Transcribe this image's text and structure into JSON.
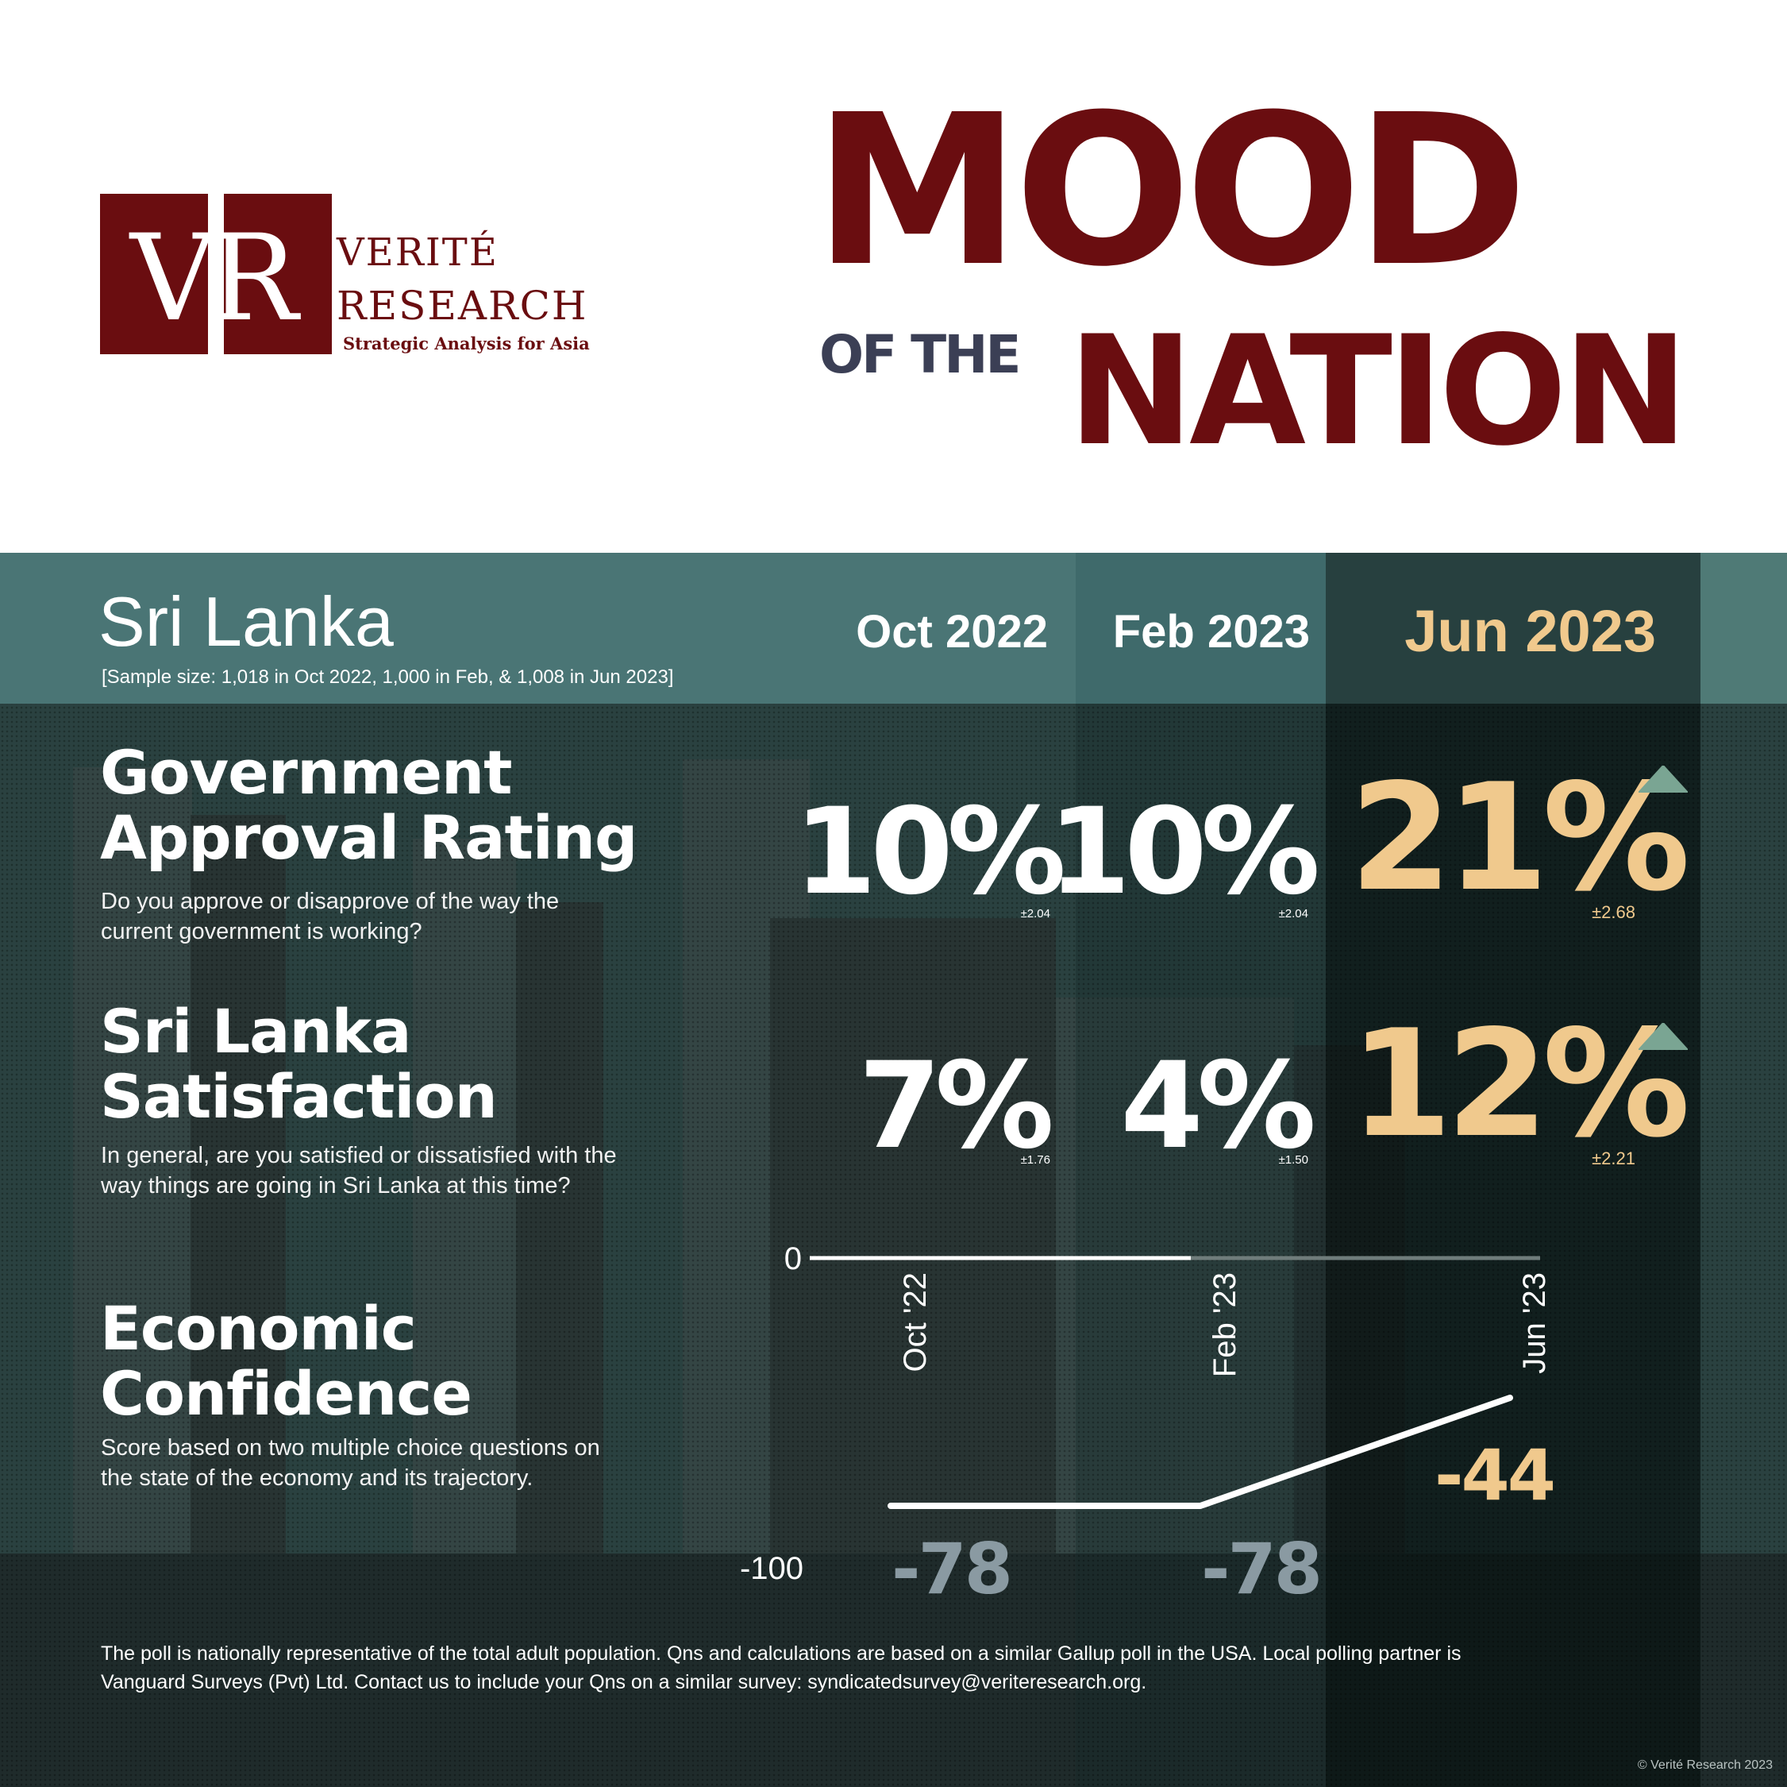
{
  "logo": {
    "letters": "VR",
    "name_line1": "VERITÉ",
    "name_line2": "RESEARCH",
    "tagline": "Strategic Analysis for Asia"
  },
  "title": {
    "line1": "MOOD",
    "of_the": "OF THE",
    "line2": "NATION"
  },
  "country": "Sri Lanka",
  "sample_note": "[Sample size: 1,018 in Oct 2022, 1,000 in Feb, & 1,008 in Jun 2023]",
  "periods": [
    "Oct 2022",
    "Feb 2023",
    "Jun 2023"
  ],
  "colors": {
    "brand": "#6a0d10",
    "highlight": "#f0c98d",
    "increase_arrow": "#7aa593",
    "past_score": "#8a9aa2"
  },
  "metrics": [
    {
      "title_line1": "Government",
      "title_line2": "Approval Rating",
      "question_line1": "Do you approve or disapprove of the way the",
      "question_line2": "current government is working?",
      "values": [
        "10%",
        "10%",
        "21%"
      ],
      "margins": [
        "±2.04",
        "±2.04",
        "±2.68"
      ],
      "trend_icon": "up-triangle-icon"
    },
    {
      "title_line1": "Sri Lanka",
      "title_line2": "Satisfaction",
      "question_line1": "In general, are you satisfied or dissatisfied with the",
      "question_line2": "way things are going in Sri Lanka at this time?",
      "values": [
        "7%",
        "4%",
        "12%"
      ],
      "margins": [
        "±1.76",
        "±1.50",
        "±2.21"
      ],
      "trend_icon": "up-triangle-icon"
    }
  ],
  "economic": {
    "title_line1": "Economic",
    "title_line2": "Confidence",
    "desc_line1": "Score based on two multiple choice questions on",
    "desc_line2": "the state of the economy and its trajectory."
  },
  "chart_data": {
    "type": "line",
    "x": [
      "Oct '22",
      "Feb '23",
      "Jun '23"
    ],
    "series": [
      {
        "values": [
          -78,
          -78,
          -44
        ]
      }
    ],
    "value_labels": [
      "-78",
      "-78",
      "-44"
    ],
    "ylim": [
      -100,
      0
    ],
    "y_tick_labels": [
      "0",
      "-100"
    ]
  },
  "footer": {
    "line1": "The poll is nationally representative of the total adult population. Qns and calculations are based on a similar Gallup poll in the USA. Local polling partner is",
    "line2": "Vanguard Surveys (Pvt) Ltd. Contact us to include your Qns on a similar survey: syndicatedsurvey@veriteresearch.org."
  },
  "copyright": "© Verité Research 2023"
}
